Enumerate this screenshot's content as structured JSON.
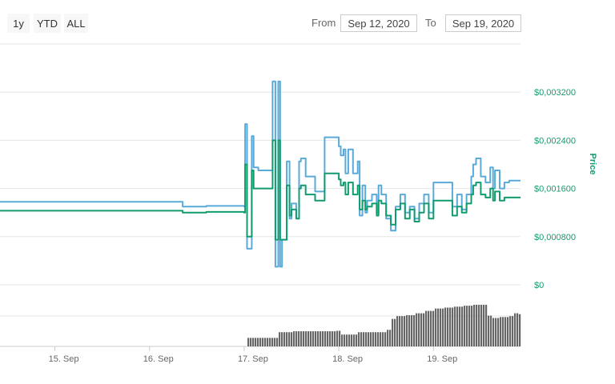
{
  "range_selector": {
    "buttons": [
      "1y",
      "YTD",
      "ALL"
    ],
    "from_label": "From",
    "from_value": "Sep 12, 2020",
    "to_label": "To",
    "to_value": "Sep 19, 2020"
  },
  "colors": {
    "price_line_1": "#5aaad9",
    "price_line_2": "#119c70",
    "volume_bars": "#666666",
    "axis_label": "#119c70",
    "grid": "#e6e6e6"
  },
  "chart_data": {
    "type": "line",
    "y_axis": {
      "title": "Price",
      "ticks": [
        "$0",
        "$0,000800",
        "$0,001600",
        "$0,002400",
        "$0,003200"
      ],
      "tick_values": [
        0,
        0.0008,
        0.0016,
        0.0024,
        0.0032
      ],
      "ylim": [
        0,
        0.004
      ],
      "position": "right"
    },
    "x_axis": {
      "ticks": [
        "15. Sep",
        "16. Sep",
        "17. Sep",
        "18. Sep",
        "19. Sep"
      ],
      "tick_values": [
        15,
        16,
        17,
        18,
        19
      ],
      "xlim": [
        14.42,
        19.92
      ]
    },
    "grid": true,
    "series": [
      {
        "x": [
          14.42,
          16.0,
          16.35,
          16.6,
          17.0,
          17.01,
          17.03,
          17.08,
          17.1,
          17.15,
          17.2,
          17.25,
          17.28,
          17.3,
          17.33,
          17.36,
          17.38,
          17.4,
          17.45,
          17.48,
          17.5,
          17.55,
          17.58,
          17.6,
          17.65,
          17.7,
          17.75,
          17.8,
          17.85,
          17.9,
          18.0,
          18.02,
          18.05,
          18.07,
          18.1,
          18.15,
          18.2,
          18.22,
          18.25,
          18.28,
          18.3,
          18.35,
          18.4,
          18.42,
          18.45,
          18.5,
          18.55,
          18.6,
          18.63,
          18.65,
          18.7,
          18.75,
          18.8,
          18.85,
          18.9,
          18.95,
          19.0,
          19.05,
          19.1,
          19.15,
          19.2,
          19.25,
          19.3,
          19.35,
          19.4,
          19.42,
          19.45,
          19.5,
          19.55,
          19.6,
          19.63,
          19.65,
          19.7,
          19.75,
          19.8,
          19.85,
          19.9
        ],
        "values": [
          0.00138,
          0.00138,
          0.0013,
          0.00131,
          0.0013,
          0.00267,
          0.0006,
          0.00247,
          0.00195,
          0.0019,
          0.0019,
          0.0019,
          0.0019,
          0.00338,
          0.0003,
          0.00338,
          0.0003,
          0.00075,
          0.00205,
          0.0011,
          0.00135,
          0.0011,
          0.00205,
          0.0021,
          0.0018,
          0.0018,
          0.00155,
          0.00155,
          0.00245,
          0.00245,
          0.0023,
          0.00215,
          0.00225,
          0.00185,
          0.00225,
          0.00185,
          0.00205,
          0.00115,
          0.00165,
          0.0012,
          0.0014,
          0.0015,
          0.0012,
          0.00165,
          0.0015,
          0.0011,
          0.0009,
          0.0013,
          0.0013,
          0.0015,
          0.0012,
          0.0013,
          0.0011,
          0.00135,
          0.0015,
          0.0012,
          0.0017,
          0.0017,
          0.0017,
          0.0017,
          0.0013,
          0.0015,
          0.00125,
          0.0015,
          0.0018,
          0.002,
          0.0021,
          0.0018,
          0.0017,
          0.00195,
          0.0016,
          0.0019,
          0.0016,
          0.0017,
          0.00173,
          0.00173,
          0.00173
        ]
      },
      {
        "x": [
          14.42,
          16.0,
          16.35,
          16.6,
          17.0,
          17.01,
          17.03,
          17.08,
          17.1,
          17.15,
          17.2,
          17.25,
          17.28,
          17.3,
          17.33,
          17.36,
          17.38,
          17.4,
          17.45,
          17.48,
          17.5,
          17.55,
          17.58,
          17.6,
          17.65,
          17.7,
          17.75,
          17.8,
          17.85,
          17.9,
          18.0,
          18.02,
          18.05,
          18.07,
          18.1,
          18.15,
          18.2,
          18.22,
          18.25,
          18.28,
          18.3,
          18.35,
          18.4,
          18.42,
          18.45,
          18.5,
          18.55,
          18.6,
          18.63,
          18.65,
          18.7,
          18.75,
          18.8,
          18.85,
          18.9,
          18.95,
          19.0,
          19.05,
          19.1,
          19.15,
          19.2,
          19.25,
          19.3,
          19.35,
          19.4,
          19.42,
          19.45,
          19.5,
          19.55,
          19.6,
          19.63,
          19.65,
          19.7,
          19.75,
          19.8,
          19.85,
          19.9
        ],
        "values": [
          0.00123,
          0.00123,
          0.0012,
          0.00121,
          0.0012,
          0.002,
          0.0008,
          0.0019,
          0.0016,
          0.0016,
          0.0016,
          0.0016,
          0.0016,
          0.0024,
          0.00075,
          0.0024,
          0.00075,
          0.00075,
          0.00165,
          0.00115,
          0.00125,
          0.0011,
          0.0016,
          0.00165,
          0.0015,
          0.0015,
          0.0014,
          0.0014,
          0.00185,
          0.00185,
          0.00175,
          0.00165,
          0.0017,
          0.0015,
          0.0017,
          0.0015,
          0.00165,
          0.00125,
          0.0014,
          0.00125,
          0.0013,
          0.00135,
          0.00115,
          0.0014,
          0.00135,
          0.00115,
          0.001,
          0.00125,
          0.00125,
          0.00135,
          0.0011,
          0.00125,
          0.00105,
          0.0012,
          0.00135,
          0.0011,
          0.0014,
          0.0014,
          0.0014,
          0.0014,
          0.00115,
          0.0013,
          0.0012,
          0.00135,
          0.0015,
          0.00165,
          0.0017,
          0.0015,
          0.00145,
          0.0016,
          0.0014,
          0.00155,
          0.0014,
          0.00145,
          0.00145,
          0.00145,
          0.00145
        ]
      }
    ],
    "volume": {
      "x": [
        14.42,
        17.0,
        17.01,
        17.3,
        17.35,
        17.5,
        17.95,
        18.0,
        18.2,
        18.4,
        18.5,
        18.55,
        18.6,
        18.7,
        18.8,
        18.9,
        19.0,
        19.1,
        19.2,
        19.3,
        19.4,
        19.5,
        19.55,
        19.6,
        19.7,
        19.8,
        19.85,
        19.9
      ],
      "values": [
        0,
        0,
        18,
        18,
        30,
        32,
        33,
        25,
        30,
        30,
        35,
        58,
        64,
        66,
        70,
        75,
        80,
        82,
        84,
        86,
        88,
        88,
        65,
        60,
        62,
        64,
        70,
        68
      ],
      "ylim": [
        0,
        120
      ]
    }
  }
}
